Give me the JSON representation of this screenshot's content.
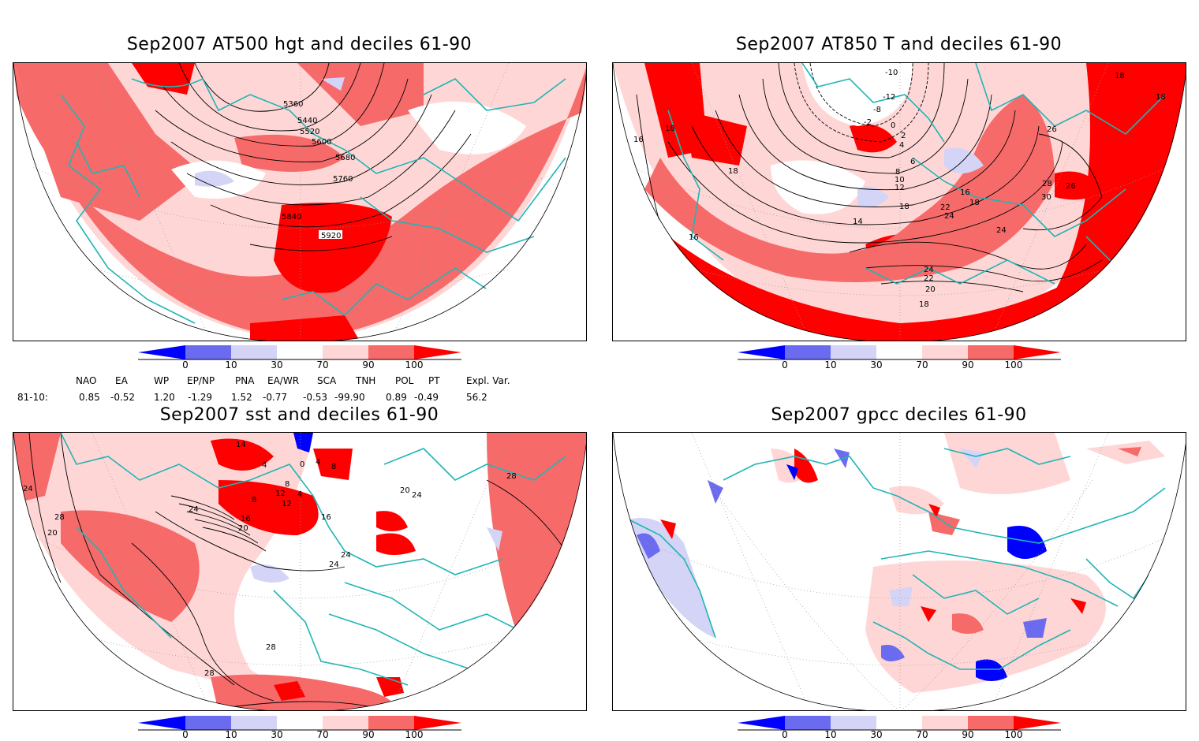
{
  "colors": {
    "blue_strong": "#0000ff",
    "blue_mid": "#6b6bf0",
    "blue_light": "#d4d4f7",
    "white": "#ffffff",
    "red_light": "#ffd6d6",
    "red_mid": "#f76a6a",
    "red_strong": "#ff0000",
    "coastline": "#20b5b5",
    "contour": "#000000"
  },
  "panels": [
    {
      "title": "Sep2007 AT500 hgt and deciles 61-90",
      "contour_labels": [
        "5360",
        "5440",
        "5520",
        "5600",
        "5680",
        "5760",
        "5840",
        "5920"
      ]
    },
    {
      "title": "Sep2007 AT850 T and deciles 61-90",
      "contour_labels": [
        "-10",
        "-12",
        "-8",
        "-2",
        "0",
        "2",
        "4",
        "6",
        "8",
        "10",
        "12",
        "14",
        "16",
        "18",
        "18",
        "22",
        "24",
        "26",
        "28",
        "30",
        "18",
        "16",
        "18",
        "18",
        "20",
        "22",
        "24",
        "24",
        "26",
        "18",
        "18",
        "16"
      ]
    },
    {
      "title": "Sep2007 sst and deciles 61-90",
      "contour_labels": [
        "24",
        "28",
        "24",
        "20",
        "16",
        "12",
        "8",
        "4",
        "0",
        "4",
        "8",
        "8",
        "4",
        "12",
        "16",
        "20",
        "24",
        "24",
        "28",
        "28",
        "28",
        "20",
        "24",
        "14"
      ]
    },
    {
      "title": "Sep2007 gpcc deciles 61-90",
      "contour_labels": []
    }
  ],
  "colorbar_ticks": [
    "0",
    "10",
    "30",
    "70",
    "90",
    "100"
  ],
  "indices": {
    "headers": [
      "NAO",
      "EA",
      "WP",
      "EP/NP",
      "PNA",
      "EA/WR",
      "SCA",
      "TNH",
      "POL",
      "PT",
      "Expl. Var."
    ],
    "row_label": "81-10:",
    "values": [
      "0.85",
      "-0.52",
      "1.20",
      "-1.29",
      "1.52",
      "-0.77",
      "-0.53",
      "-99.90",
      "0.89",
      "-0.49",
      "56.2"
    ]
  }
}
